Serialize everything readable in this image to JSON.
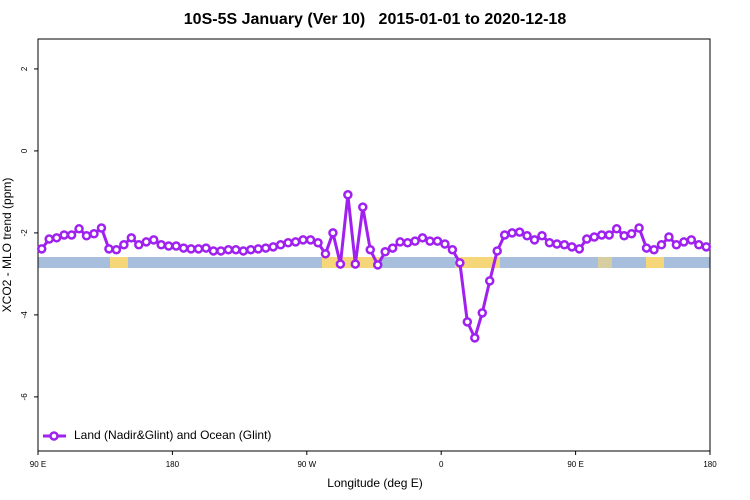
{
  "chart_data": {
    "type": "line",
    "title": "10S-5S January (Ver 10)   2015-01-01 to 2020-12-18",
    "xlabel": "Longitude (deg E)",
    "ylabel": "XCO2 - MLO trend (ppm)",
    "xlim": [
      90,
      540
    ],
    "ylim": [
      -7.32,
      2.73
    ],
    "xticks": [
      {
        "value": 90,
        "label": "90 E"
      },
      180,
      {
        "value": 270,
        "label": "90 W"
      },
      {
        "value": 360,
        "label": "0"
      },
      {
        "value": 450,
        "label": "90 E"
      },
      {
        "value": 540,
        "label": "180"
      }
    ],
    "yticks": [
      2,
      0,
      -2,
      -4,
      -6
    ],
    "legend": "bottom-left",
    "x": [
      92.5,
      97.5,
      102.5,
      107.5,
      112.5,
      117.5,
      122.5,
      127.5,
      132.5,
      137.5,
      142.5,
      147.5,
      152.5,
      157.5,
      162.5,
      167.5,
      172.5,
      177.5,
      182.5,
      187.5,
      192.5,
      197.5,
      202.5,
      207.5,
      212.5,
      217.5,
      222.5,
      227.5,
      232.5,
      237.5,
      242.5,
      247.5,
      252.5,
      257.5,
      262.5,
      267.5,
      272.5,
      277.5,
      282.5,
      287.5,
      292.5,
      297.5,
      302.5,
      307.5,
      312.5,
      317.5,
      322.5,
      327.5,
      332.5,
      337.5,
      342.5,
      347.5,
      352.5,
      357.5,
      362.5,
      367.5,
      372.5,
      377.5,
      382.5,
      387.5,
      392.5,
      397.5,
      402.5,
      407.5,
      412.5,
      417.5,
      422.5,
      427.5,
      432.5,
      437.5,
      442.5,
      447.5,
      452.5,
      457.5,
      462.5,
      467.5,
      472.5,
      477.5,
      482.5,
      487.5,
      492.5,
      497.5,
      502.5,
      507.5,
      512.5,
      517.5,
      522.5,
      527.5,
      532.5,
      537.5
    ],
    "series": [
      {
        "name": "Land (Nadir&Glint) and Ocean (Glint)",
        "color": "#a020f0",
        "values": [
          -2.39,
          -2.15,
          -2.12,
          -2.05,
          -2.05,
          -1.9,
          -2.07,
          -2.02,
          -1.88,
          -2.39,
          -2.41,
          -2.29,
          -2.12,
          -2.29,
          -2.22,
          -2.17,
          -2.29,
          -2.32,
          -2.32,
          -2.37,
          -2.39,
          -2.39,
          -2.37,
          -2.44,
          -2.44,
          -2.41,
          -2.41,
          -2.44,
          -2.41,
          -2.39,
          -2.37,
          -2.34,
          -2.29,
          -2.24,
          -2.22,
          -2.17,
          -2.17,
          -2.24,
          -2.51,
          -2.0,
          -2.76,
          -1.07,
          -2.76,
          -1.37,
          -2.41,
          -2.78,
          -2.46,
          -2.37,
          -2.22,
          -2.24,
          -2.2,
          -2.12,
          -2.2,
          -2.2,
          -2.27,
          -2.41,
          -2.73,
          -4.17,
          -4.56,
          -3.95,
          -3.17,
          -2.44,
          -2.05,
          -2.0,
          -1.98,
          -2.07,
          -2.17,
          -2.07,
          -2.24,
          -2.27,
          -2.29,
          -2.34,
          -2.39,
          -2.15,
          -2.1,
          -2.05,
          -2.05,
          -1.9,
          -2.07,
          -2.02,
          -1.88,
          -2.37,
          -2.41,
          -2.29,
          -2.1,
          -2.29,
          -2.22,
          -2.17,
          -2.29,
          -2.34
        ]
      }
    ]
  }
}
